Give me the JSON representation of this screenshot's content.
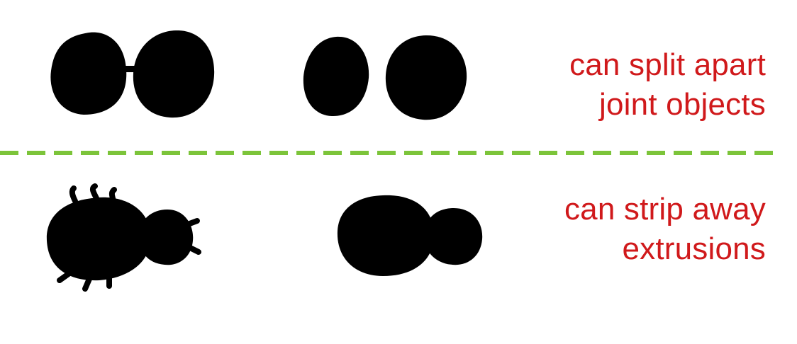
{
  "colors": {
    "background": "#ffffff",
    "blob": "#000000",
    "caption_text": "#d0191b",
    "divider": "#7cc43a"
  },
  "rows": [
    {
      "caption_lines": [
        "can split apart",
        "joint objects"
      ],
      "before_shape": "two-blobs-joined-by-bridge",
      "after_shape": "two-separate-blobs"
    },
    {
      "caption_lines": [
        "can strip away",
        "extrusions"
      ],
      "before_shape": "bug-silhouette-with-legs",
      "after_shape": "smooth-body-without-legs"
    }
  ],
  "divider_style": "dashed"
}
